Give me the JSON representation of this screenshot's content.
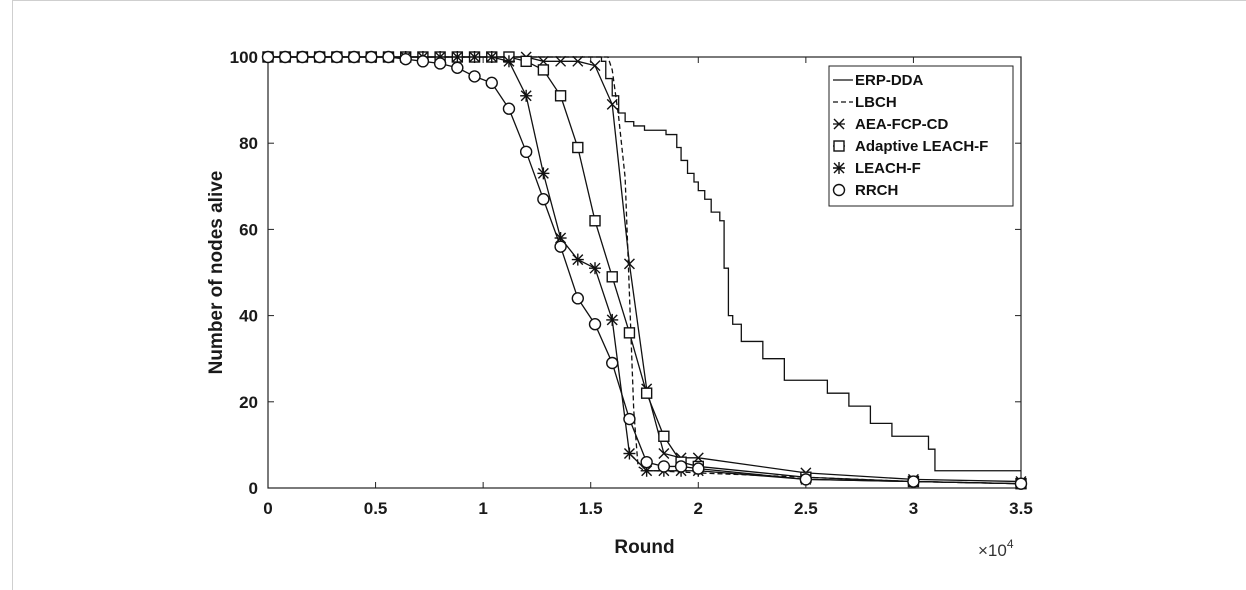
{
  "chart_data": {
    "type": "line",
    "xlabel": "Round",
    "ylabel": "Number of nodes alive",
    "x_multiplier_label": "×10",
    "x_multiplier_exp": "4",
    "xlim": [
      0,
      3.5
    ],
    "ylim": [
      0,
      100
    ],
    "xticks": [
      "0",
      "0.5",
      "1",
      "1.5",
      "2",
      "2.5",
      "3",
      "3.5"
    ],
    "yticks": [
      "0",
      "20",
      "40",
      "60",
      "80",
      "100"
    ],
    "legend_position": "top-right",
    "grid": false,
    "series": [
      {
        "name": "ERP-DDA",
        "style": "solid",
        "marker": "none",
        "x": [
          0,
          1.55,
          1.57,
          1.6,
          1.63,
          1.66,
          1.7,
          1.75,
          1.8,
          1.85,
          1.9,
          1.92,
          1.95,
          1.98,
          2.0,
          2.03,
          2.06,
          2.1,
          2.12,
          2.14,
          2.16,
          2.2,
          2.3,
          2.4,
          2.5,
          2.6,
          2.7,
          2.8,
          2.9,
          3.0,
          3.07,
          3.1,
          3.5
        ],
        "y": [
          100,
          99,
          95,
          91,
          87,
          85,
          84,
          83,
          83,
          82,
          79,
          76,
          73,
          71,
          69,
          67,
          64,
          62,
          51,
          40,
          38,
          34,
          30,
          25,
          25,
          22,
          19,
          15,
          12,
          12,
          9,
          4,
          4
        ]
      },
      {
        "name": "LBCH",
        "style": "dashed",
        "marker": "none",
        "x": [
          0,
          1.58,
          1.6,
          1.63,
          1.66,
          1.68,
          1.7,
          1.72,
          1.75,
          1.8,
          2.0,
          2.5,
          3.0,
          3.5
        ],
        "y": [
          100,
          100,
          97,
          86,
          72,
          45,
          18,
          5,
          4,
          4,
          3.5,
          2.5,
          1.5,
          1
        ]
      },
      {
        "name": "AEA-FCP-CD",
        "style": "solid",
        "marker": "x",
        "x": [
          0,
          0.08,
          0.16,
          0.24,
          0.32,
          0.4,
          0.48,
          0.56,
          0.64,
          0.72,
          0.8,
          0.88,
          0.96,
          1.04,
          1.12,
          1.2,
          1.28,
          1.36,
          1.44,
          1.52,
          1.6,
          1.68,
          1.76,
          1.84,
          1.92,
          2.0,
          2.5,
          3.0,
          3.5
        ],
        "y": [
          100,
          100,
          100,
          100,
          100,
          100,
          100,
          100,
          100,
          100,
          100,
          100,
          100,
          100,
          100,
          100,
          99,
          99,
          99,
          98,
          89,
          52,
          23,
          8,
          7,
          7,
          3.5,
          2,
          1.5
        ]
      },
      {
        "name": "Adaptive LEACH-F",
        "style": "solid",
        "marker": "square",
        "x": [
          0,
          0.08,
          0.16,
          0.24,
          0.32,
          0.4,
          0.48,
          0.56,
          0.64,
          0.72,
          0.8,
          0.88,
          0.96,
          1.04,
          1.12,
          1.2,
          1.28,
          1.36,
          1.44,
          1.52,
          1.6,
          1.68,
          1.76,
          1.84,
          1.92,
          2.0,
          2.5,
          3.0,
          3.5
        ],
        "y": [
          100,
          100,
          100,
          100,
          100,
          100,
          100,
          100,
          100,
          100,
          100,
          100,
          100,
          100,
          100,
          99,
          97,
          91,
          79,
          62,
          49,
          36,
          22,
          12,
          6,
          5,
          2.5,
          1.5,
          1
        ]
      },
      {
        "name": "LEACH-F",
        "style": "solid",
        "marker": "star",
        "x": [
          0,
          0.08,
          0.16,
          0.24,
          0.32,
          0.4,
          0.48,
          0.56,
          0.64,
          0.72,
          0.8,
          0.88,
          0.96,
          1.04,
          1.12,
          1.2,
          1.28,
          1.36,
          1.44,
          1.52,
          1.6,
          1.68,
          1.76,
          1.84,
          1.92,
          2.0,
          2.5,
          3.0,
          3.5
        ],
        "y": [
          100,
          100,
          100,
          100,
          100,
          100,
          100,
          100,
          100,
          100,
          100,
          100,
          100,
          100,
          99,
          91,
          73,
          58,
          53,
          51,
          39,
          8,
          4,
          4,
          4,
          4,
          2,
          1.5,
          1
        ]
      },
      {
        "name": "RRCH",
        "style": "solid",
        "marker": "circle",
        "x": [
          0,
          0.08,
          0.16,
          0.24,
          0.32,
          0.4,
          0.48,
          0.56,
          0.64,
          0.72,
          0.8,
          0.88,
          0.96,
          1.04,
          1.12,
          1.2,
          1.28,
          1.36,
          1.44,
          1.52,
          1.6,
          1.68,
          1.76,
          1.84,
          1.92,
          2.0,
          2.5,
          3.0,
          3.5
        ],
        "y": [
          100,
          100,
          100,
          100,
          100,
          100,
          100,
          100,
          99.5,
          99,
          98.5,
          97.5,
          95.5,
          94,
          88,
          78,
          67,
          56,
          44,
          38,
          29,
          16,
          6,
          5,
          5,
          4.5,
          2,
          1.5,
          1
        ]
      }
    ]
  }
}
